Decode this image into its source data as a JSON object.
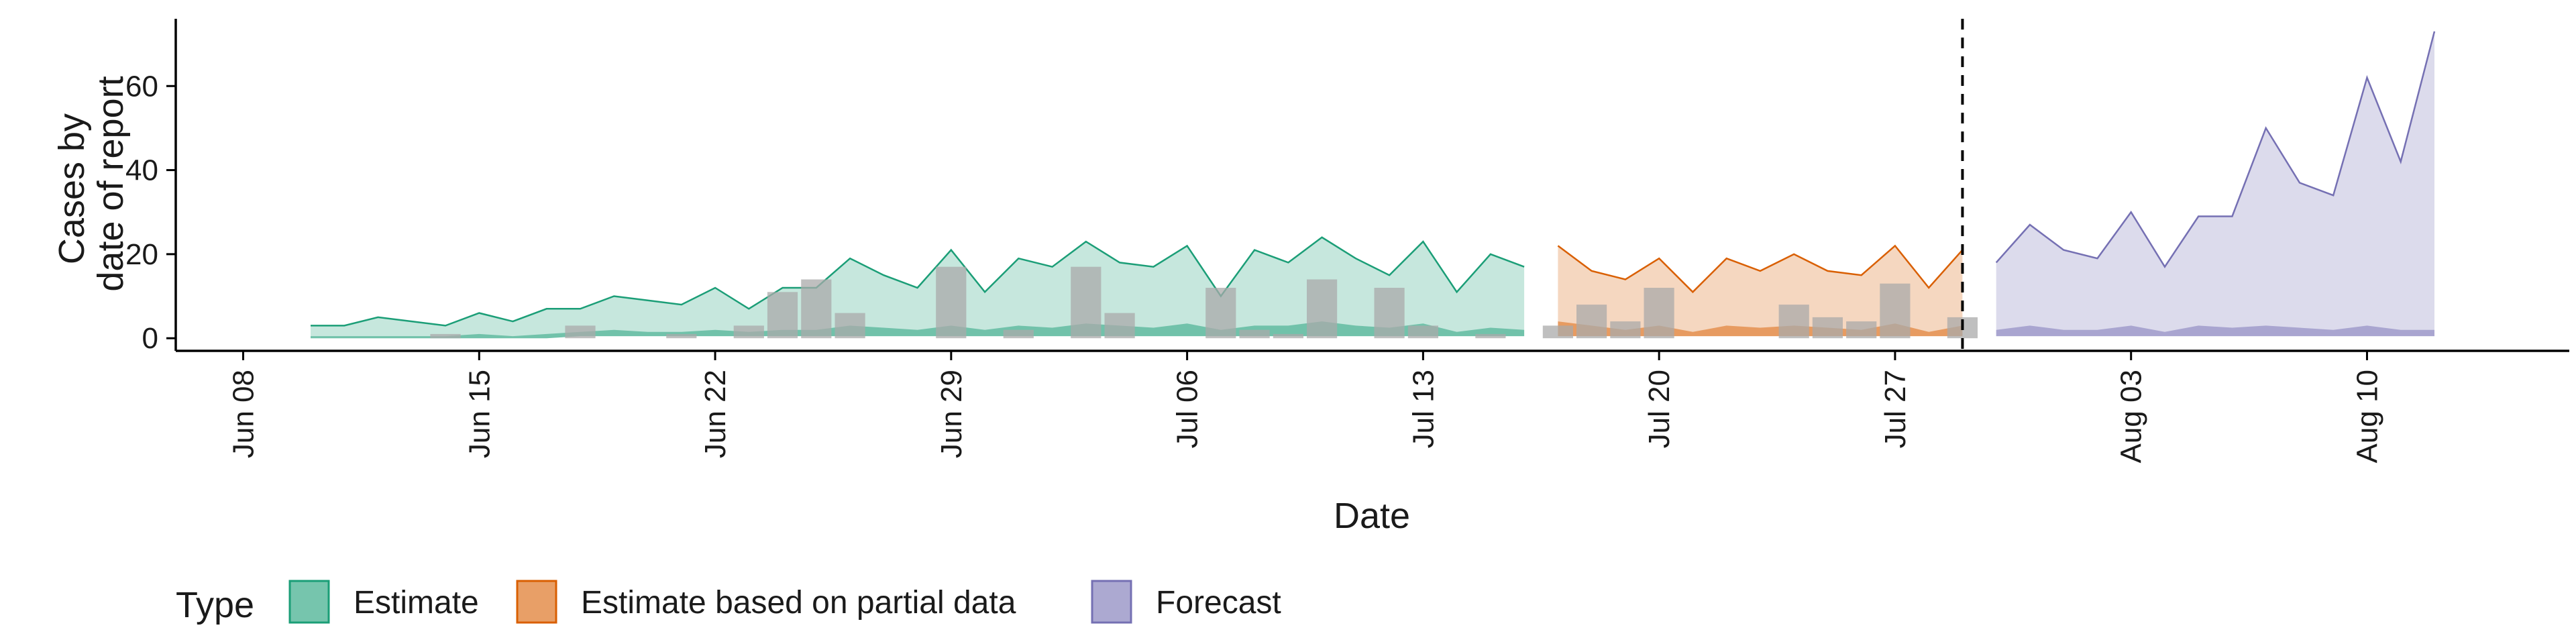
{
  "chart_data": {
    "type": "area",
    "xlabel": "Date",
    "ylabel": [
      "Cases by",
      "date of report"
    ],
    "ylim": [
      -3,
      76
    ],
    "yticks": [
      0,
      20,
      40,
      60
    ],
    "x_ticks": [
      {
        "date": "2020-06-08",
        "label": "Jun 08"
      },
      {
        "date": "2020-06-15",
        "label": "Jun 15"
      },
      {
        "date": "2020-06-22",
        "label": "Jun 22"
      },
      {
        "date": "2020-06-29",
        "label": "Jun 29"
      },
      {
        "date": "2020-07-06",
        "label": "Jul 06"
      },
      {
        "date": "2020-07-13",
        "label": "Jul 13"
      },
      {
        "date": "2020-07-20",
        "label": "Jul 20"
      },
      {
        "date": "2020-07-27",
        "label": "Jul 27"
      },
      {
        "date": "2020-08-03",
        "label": "Aug 03"
      },
      {
        "date": "2020-08-10",
        "label": "Aug 10"
      }
    ],
    "xlim": [
      "2020-06-06",
      "2020-08-16"
    ],
    "vline_date": "2020-07-29",
    "grid": false,
    "legend": {
      "title": "Type",
      "position": "bottom",
      "items": [
        {
          "label": "Estimate",
          "color": "#1b9e77"
        },
        {
          "label": "Estimate based on partial data",
          "color": "#d95f02"
        },
        {
          "label": "Forecast",
          "color": "#7570b3"
        }
      ]
    },
    "bar_color": "#a9a9a9",
    "series": [
      {
        "type": "Estimate",
        "color": "#1b9e77",
        "dates": [
          "2020-06-10",
          "2020-06-11",
          "2020-06-12",
          "2020-06-13",
          "2020-06-14",
          "2020-06-15",
          "2020-06-16",
          "2020-06-17",
          "2020-06-18",
          "2020-06-19",
          "2020-06-20",
          "2020-06-21",
          "2020-06-22",
          "2020-06-23",
          "2020-06-24",
          "2020-06-25",
          "2020-06-26",
          "2020-06-27",
          "2020-06-28",
          "2020-06-29",
          "2020-06-30",
          "2020-07-01",
          "2020-07-02",
          "2020-07-03",
          "2020-07-04",
          "2020-07-05",
          "2020-07-06",
          "2020-07-07",
          "2020-07-08",
          "2020-07-09",
          "2020-07-10",
          "2020-07-11",
          "2020-07-12",
          "2020-07-13",
          "2020-07-14",
          "2020-07-15",
          "2020-07-16"
        ],
        "upper": [
          3,
          3,
          5,
          4,
          3,
          6,
          4,
          7,
          7,
          10,
          9,
          8,
          12,
          7,
          12,
          12,
          19,
          15,
          12,
          21,
          11,
          19,
          17,
          23,
          18,
          17,
          22,
          10,
          21,
          18,
          24,
          19,
          15,
          23,
          11,
          20,
          17
        ],
        "lower": [
          0,
          0,
          0,
          0,
          0,
          0,
          0,
          0,
          0.5,
          0.5,
          0.5,
          0.5,
          0.5,
          0.5,
          0.5,
          0.5,
          0.5,
          0.5,
          0.5,
          0.5,
          0.5,
          0.5,
          0.5,
          0.5,
          0.5,
          0.5,
          0.5,
          0.5,
          0.5,
          0.5,
          0.5,
          0.5,
          0.5,
          0.5,
          0.5,
          0.5,
          0.5
        ],
        "inner_upper": [
          0.5,
          0.5,
          0.5,
          0.5,
          0.5,
          1,
          0.5,
          1,
          1.5,
          2,
          1.5,
          1.5,
          2,
          1.5,
          2,
          2,
          3,
          2.5,
          2,
          3,
          2,
          3,
          2.5,
          3.5,
          3,
          2.5,
          3.5,
          2,
          3,
          3,
          4,
          3,
          2.5,
          3.5,
          1.5,
          2.5,
          2
        ]
      },
      {
        "type": "Estimate based on partial data",
        "color": "#d95f02",
        "dates": [
          "2020-07-17",
          "2020-07-18",
          "2020-07-19",
          "2020-07-20",
          "2020-07-21",
          "2020-07-22",
          "2020-07-23",
          "2020-07-24",
          "2020-07-25",
          "2020-07-26",
          "2020-07-27",
          "2020-07-28",
          "2020-07-29"
        ],
        "upper": [
          22,
          16,
          14,
          19,
          11,
          19,
          16,
          20,
          16,
          15,
          22,
          12,
          21
        ],
        "lower": [
          0.5,
          0.5,
          0.5,
          0.5,
          0.5,
          0.5,
          0.5,
          0.5,
          0.5,
          0.5,
          0.5,
          0.5,
          0.5
        ],
        "inner_upper": [
          4,
          3,
          2,
          3,
          1.5,
          3,
          2.5,
          3,
          2.5,
          2,
          3.5,
          1.5,
          3
        ]
      },
      {
        "type": "Forecast",
        "color": "#7570b3",
        "dates": [
          "2020-07-30",
          "2020-07-31",
          "2020-08-01",
          "2020-08-02",
          "2020-08-03",
          "2020-08-04",
          "2020-08-05",
          "2020-08-06",
          "2020-08-07",
          "2020-08-08",
          "2020-08-09",
          "2020-08-10",
          "2020-08-11",
          "2020-08-12"
        ],
        "upper": [
          18,
          27,
          21,
          19,
          30,
          17,
          29,
          29,
          50,
          37,
          34,
          62,
          42,
          73
        ],
        "lower": [
          0.5,
          0.5,
          0.5,
          0.5,
          0.5,
          0.5,
          0.5,
          0.5,
          0.5,
          0.5,
          0.5,
          0.5,
          0.5,
          0.5
        ],
        "inner_upper": [
          2,
          3,
          2,
          2,
          3,
          1.5,
          3,
          2.5,
          3,
          2.5,
          2,
          3,
          2,
          2
        ]
      }
    ],
    "bars": [
      {
        "date": "2020-06-14",
        "value": 1
      },
      {
        "date": "2020-06-18",
        "value": 3
      },
      {
        "date": "2020-06-21",
        "value": 1
      },
      {
        "date": "2020-06-23",
        "value": 3
      },
      {
        "date": "2020-06-24",
        "value": 11
      },
      {
        "date": "2020-06-25",
        "value": 14
      },
      {
        "date": "2020-06-26",
        "value": 6
      },
      {
        "date": "2020-06-29",
        "value": 17
      },
      {
        "date": "2020-07-01",
        "value": 2
      },
      {
        "date": "2020-07-03",
        "value": 17
      },
      {
        "date": "2020-07-04",
        "value": 6
      },
      {
        "date": "2020-07-07",
        "value": 12
      },
      {
        "date": "2020-07-08",
        "value": 2
      },
      {
        "date": "2020-07-09",
        "value": 1
      },
      {
        "date": "2020-07-10",
        "value": 14
      },
      {
        "date": "2020-07-12",
        "value": 12
      },
      {
        "date": "2020-07-13",
        "value": 3
      },
      {
        "date": "2020-07-15",
        "value": 1
      },
      {
        "date": "2020-07-17",
        "value": 3
      },
      {
        "date": "2020-07-18",
        "value": 8
      },
      {
        "date": "2020-07-19",
        "value": 4
      },
      {
        "date": "2020-07-20",
        "value": 12
      },
      {
        "date": "2020-07-24",
        "value": 8
      },
      {
        "date": "2020-07-25",
        "value": 5
      },
      {
        "date": "2020-07-26",
        "value": 4
      },
      {
        "date": "2020-07-27",
        "value": 13
      },
      {
        "date": "2020-07-29",
        "value": 5
      }
    ]
  }
}
